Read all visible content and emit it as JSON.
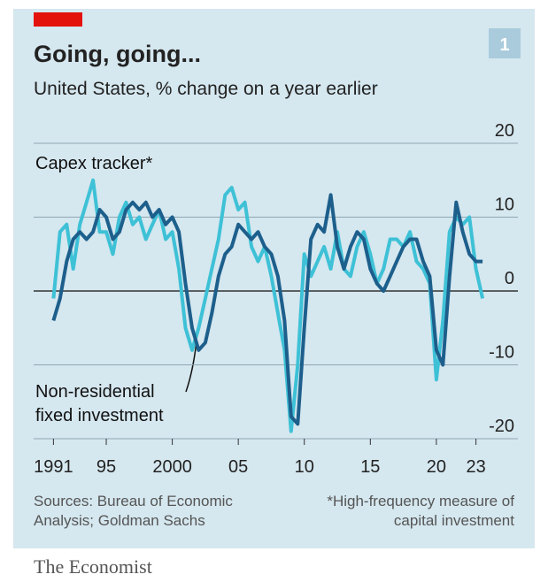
{
  "chart_data": {
    "type": "line",
    "title": "Going, going...",
    "subtitle": "United States, % change on a year earlier",
    "badge": "1",
    "source": "Sources: Bureau of Economic Analysis; Goldman Sachs",
    "footnote": "*High-frequency measure of capital investment",
    "brand": "The Economist",
    "x": [
      1991,
      1991.5,
      1992,
      1992.5,
      1993,
      1993.5,
      1994,
      1994.5,
      1995,
      1995.5,
      1996,
      1996.5,
      1997,
      1997.5,
      1998,
      1998.5,
      1999,
      1999.5,
      2000,
      2000.5,
      2001,
      2001.5,
      2002,
      2002.5,
      2003,
      2003.5,
      2004,
      2004.5,
      2005,
      2005.5,
      2006,
      2006.5,
      2007,
      2007.5,
      2008,
      2008.5,
      2009,
      2009.5,
      2010,
      2010.5,
      2011,
      2011.5,
      2012,
      2012.5,
      2013,
      2013.5,
      2014,
      2014.5,
      2015,
      2015.5,
      2016,
      2016.5,
      2017,
      2017.5,
      2018,
      2018.5,
      2019,
      2019.5,
      2020,
      2020.5,
      2021,
      2021.5,
      2022,
      2022.5,
      2023,
      2023.5
    ],
    "series": [
      {
        "name": "Capex tracker*",
        "color": "#3ec1d6",
        "values": [
          -1,
          8,
          9,
          3,
          9,
          12,
          15,
          8,
          8,
          5,
          10,
          12,
          9,
          10,
          7,
          9,
          11,
          7,
          8,
          3,
          -5,
          -8,
          -5,
          -1,
          3,
          7,
          13,
          14,
          11,
          12,
          6,
          4,
          6,
          2,
          -3,
          -8,
          -19,
          -10,
          5,
          2,
          4,
          6,
          3,
          8,
          3,
          2,
          6,
          8,
          5,
          1,
          3,
          7,
          7,
          6,
          8,
          4,
          3,
          1,
          -12,
          -4,
          8,
          10,
          9,
          10,
          3,
          -1
        ]
      },
      {
        "name": "Non-residential fixed investment",
        "color": "#1d5f8c",
        "values": [
          -4,
          -1,
          4,
          7,
          8,
          7,
          8,
          11,
          10,
          7,
          8,
          11,
          12,
          11,
          12,
          10,
          11,
          9,
          10,
          8,
          1,
          -5,
          -8,
          -7,
          -3,
          2,
          5,
          6,
          9,
          8,
          7,
          8,
          6,
          5,
          2,
          -4,
          -17,
          -18,
          -5,
          7,
          9,
          8,
          13,
          6,
          3,
          6,
          8,
          7,
          3,
          1,
          0,
          2,
          4,
          6,
          7,
          7,
          4,
          2,
          -8,
          -10,
          2,
          12,
          8,
          5,
          4,
          4
        ]
      }
    ],
    "xlim": [
      1989.5,
      2024.5
    ],
    "xticks": [
      1991,
      {
        "value": 1995,
        "label": "95"
      },
      2000,
      {
        "value": 2005,
        "label": "05"
      },
      {
        "value": 2010,
        "label": "10"
      },
      {
        "value": 2015,
        "label": "15"
      },
      {
        "value": 2020,
        "label": "20"
      },
      {
        "value": 2023,
        "label": "23"
      }
    ],
    "ylim": [
      -20,
      20
    ],
    "yticks": [
      20,
      10,
      0,
      -10,
      -20
    ],
    "grid": true
  }
}
